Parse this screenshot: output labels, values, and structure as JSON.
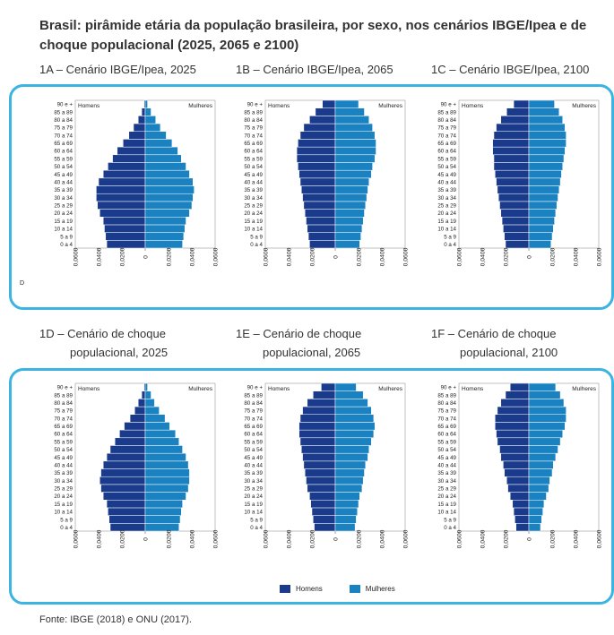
{
  "title": "Brasil: pirâmide etária da população brasileira, por sexo, nos cenários IBGE/Ipea e de choque populacional (2025, 2065 e 2100)",
  "subtitles": {
    "a": "1A – Cenário IBGE/Ipea, 2025",
    "b": "1B – Cenário IBGE/Ipea, 2065",
    "c": "1C – Cenário IBGE/Ipea, 2100",
    "d1": "1D – Cenário de choque",
    "d2": "populacional, 2025",
    "e1": "1E – Cenário de choque",
    "e2": "populacional, 2065",
    "f1": "1F – Cenário de choque",
    "f2": "populacional, 2100"
  },
  "legend": {
    "men": "Homens",
    "women": "Mulheres"
  },
  "corner_mark": "D",
  "source": "Fonte: IBGE (2018) e ONU (2017).",
  "colors": {
    "men": "#1a3a8c",
    "women": "#1a82c0",
    "frame": "#3bb3e3"
  },
  "chart_data": [
    {
      "type": "bar",
      "id": "1A",
      "categories": [
        "0 a 4",
        "5 a 9",
        "10 a 14",
        "15 a 19",
        "20 a 24",
        "25 a 29",
        "30 a 34",
        "35 a 39",
        "40 a 44",
        "45 a 49",
        "50 a 54",
        "55 a 59",
        "60 a 64",
        "65 a 69",
        "70 a 74",
        "75 a 79",
        "80 a 84",
        "85 a 89",
        "90 e +"
      ],
      "series": [
        {
          "name": "Homens",
          "values": [
            0.033,
            0.034,
            0.035,
            0.036,
            0.039,
            0.041,
            0.042,
            0.042,
            0.04,
            0.036,
            0.032,
            0.028,
            0.024,
            0.019,
            0.014,
            0.01,
            0.006,
            0.003,
            0.001
          ]
        },
        {
          "name": "Mulheres",
          "values": [
            0.032,
            0.033,
            0.034,
            0.035,
            0.038,
            0.04,
            0.041,
            0.042,
            0.041,
            0.038,
            0.035,
            0.031,
            0.028,
            0.023,
            0.018,
            0.013,
            0.009,
            0.005,
            0.002
          ]
        }
      ],
      "xlabels": [
        "0,0600",
        "0,0400",
        "0,0200",
        "0",
        "0,0200",
        "0,0400",
        "0,0600"
      ],
      "xlim": [
        -0.06,
        0.06
      ],
      "legend_labels": [
        "Homens",
        "Mulheres"
      ]
    },
    {
      "type": "bar",
      "id": "1B",
      "categories": [
        "0 a 4",
        "5 a 9",
        "10 a 14",
        "15 a 19",
        "20 a 24",
        "25 a 29",
        "30 a 34",
        "35 a 39",
        "40 a 44",
        "45 a 49",
        "50 a 54",
        "55 a 59",
        "60 a 64",
        "65 a 69",
        "70 a 74",
        "75 a 79",
        "80 a 84",
        "85 a 89",
        "90 e +"
      ],
      "series": [
        {
          "name": "Homens",
          "values": [
            0.022,
            0.023,
            0.024,
            0.025,
            0.026,
            0.027,
            0.028,
            0.029,
            0.03,
            0.031,
            0.032,
            0.033,
            0.033,
            0.032,
            0.03,
            0.027,
            0.022,
            0.017,
            0.011
          ]
        },
        {
          "name": "Mulheres",
          "values": [
            0.021,
            0.022,
            0.023,
            0.024,
            0.025,
            0.026,
            0.027,
            0.028,
            0.029,
            0.031,
            0.032,
            0.034,
            0.035,
            0.035,
            0.034,
            0.032,
            0.029,
            0.025,
            0.02
          ]
        }
      ],
      "xlabels": [
        "0,0600",
        "0,0400",
        "0,0200",
        "0",
        "0,0200",
        "0,0400",
        "0,0600"
      ],
      "xlim": [
        -0.06,
        0.06
      ],
      "legend_labels": [
        "Homens",
        "Mulheres"
      ]
    },
    {
      "type": "bar",
      "id": "1C",
      "categories": [
        "0 a 4",
        "5 a 9",
        "10 a 14",
        "15 a 19",
        "20 a 24",
        "25 a 29",
        "30 a 34",
        "35 a 39",
        "40 a 44",
        "45 a 49",
        "50 a 54",
        "55 a 59",
        "60 a 64",
        "65 a 69",
        "70 a 74",
        "75 a 79",
        "80 a 84",
        "85 a 89",
        "90 e +"
      ],
      "series": [
        {
          "name": "Homens",
          "values": [
            0.02,
            0.021,
            0.022,
            0.023,
            0.024,
            0.025,
            0.026,
            0.027,
            0.028,
            0.029,
            0.03,
            0.03,
            0.031,
            0.031,
            0.03,
            0.028,
            0.024,
            0.019,
            0.013
          ]
        },
        {
          "name": "Mulheres",
          "values": [
            0.019,
            0.02,
            0.021,
            0.022,
            0.023,
            0.024,
            0.025,
            0.026,
            0.027,
            0.028,
            0.029,
            0.03,
            0.031,
            0.032,
            0.032,
            0.031,
            0.029,
            0.026,
            0.022
          ]
        }
      ],
      "xlabels": [
        "0,0600",
        "0,0400",
        "0,0200",
        "0",
        "0,0200",
        "0,0400",
        "0,0600"
      ],
      "xlim": [
        -0.06,
        0.06
      ],
      "legend_labels": [
        "Homens",
        "Mulheres"
      ]
    },
    {
      "type": "bar",
      "id": "1D",
      "categories": [
        "0 a 4",
        "5 a 9",
        "10 a 14",
        "15 a 19",
        "20 a 24",
        "25 a 29",
        "30 a 34",
        "35 a 39",
        "40 a 44",
        "45 a 49",
        "50 a 54",
        "55 a 59",
        "60 a 64",
        "65 a 69",
        "70 a 74",
        "75 a 79",
        "80 a 84",
        "85 a 89",
        "90 e +"
      ],
      "series": [
        {
          "name": "Homens",
          "values": [
            0.03,
            0.031,
            0.032,
            0.033,
            0.036,
            0.038,
            0.039,
            0.038,
            0.036,
            0.033,
            0.03,
            0.026,
            0.022,
            0.018,
            0.013,
            0.009,
            0.006,
            0.003,
            0.001
          ]
        },
        {
          "name": "Mulheres",
          "values": [
            0.029,
            0.03,
            0.031,
            0.032,
            0.035,
            0.037,
            0.038,
            0.038,
            0.037,
            0.035,
            0.032,
            0.029,
            0.026,
            0.021,
            0.017,
            0.012,
            0.008,
            0.005,
            0.002
          ]
        }
      ],
      "xlabels": [
        "0,0600",
        "0,0400",
        "0,0200",
        "0",
        "0,0200",
        "0,0400",
        "0,0600"
      ],
      "xlim": [
        -0.06,
        0.06
      ],
      "legend_labels": [
        "Homens",
        "Mulheres"
      ]
    },
    {
      "type": "bar",
      "id": "1E",
      "categories": [
        "0 a 4",
        "5 a 9",
        "10 a 14",
        "15 a 19",
        "20 a 24",
        "25 a 29",
        "30 a 34",
        "35 a 39",
        "40 a 44",
        "45 a 49",
        "50 a 54",
        "55 a 59",
        "60 a 64",
        "65 a 69",
        "70 a 74",
        "75 a 79",
        "80 a 84",
        "85 a 89",
        "90 e +"
      ],
      "series": [
        {
          "name": "Homens",
          "values": [
            0.018,
            0.019,
            0.02,
            0.021,
            0.022,
            0.024,
            0.025,
            0.026,
            0.027,
            0.028,
            0.029,
            0.03,
            0.031,
            0.031,
            0.03,
            0.028,
            0.024,
            0.019,
            0.012
          ]
        },
        {
          "name": "Mulheres",
          "values": [
            0.017,
            0.018,
            0.019,
            0.02,
            0.021,
            0.023,
            0.024,
            0.025,
            0.026,
            0.028,
            0.029,
            0.031,
            0.033,
            0.034,
            0.033,
            0.031,
            0.028,
            0.024,
            0.018
          ]
        }
      ],
      "xlabels": [
        "0,0600",
        "0,0400",
        "0,0200",
        "0",
        "0,0200",
        "0,0400",
        "0,0600"
      ],
      "xlim": [
        -0.06,
        0.06
      ],
      "legend_labels": [
        "Homens",
        "Mulheres"
      ]
    },
    {
      "type": "bar",
      "id": "1F",
      "categories": [
        "0 a 4",
        "5 a 9",
        "10 a 14",
        "15 a 19",
        "20 a 24",
        "25 a 29",
        "30 a 34",
        "35 a 39",
        "40 a 44",
        "45 a 49",
        "50 a 54",
        "55 a 59",
        "60 a 64",
        "65 a 69",
        "70 a 74",
        "75 a 79",
        "80 a 84",
        "85 a 89",
        "90 e +"
      ],
      "series": [
        {
          "name": "Homens",
          "values": [
            0.011,
            0.012,
            0.013,
            0.014,
            0.016,
            0.018,
            0.019,
            0.021,
            0.022,
            0.024,
            0.025,
            0.027,
            0.028,
            0.029,
            0.029,
            0.027,
            0.024,
            0.02,
            0.016
          ]
        },
        {
          "name": "Mulheres",
          "values": [
            0.01,
            0.011,
            0.012,
            0.013,
            0.015,
            0.017,
            0.018,
            0.02,
            0.021,
            0.023,
            0.025,
            0.027,
            0.029,
            0.031,
            0.032,
            0.032,
            0.03,
            0.027,
            0.023
          ]
        }
      ],
      "xlabels": [
        "0,0600",
        "0,0400",
        "0,0200",
        "0",
        "0,0200",
        "0,0400",
        "0,0600"
      ],
      "xlim": [
        -0.06,
        0.06
      ],
      "legend_labels": [
        "Homens",
        "Mulheres"
      ]
    }
  ]
}
